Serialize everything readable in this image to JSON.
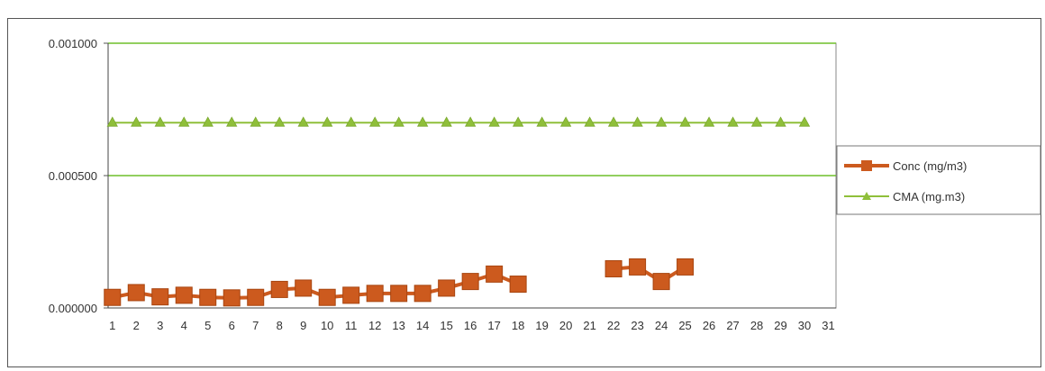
{
  "chart_data": {
    "type": "line",
    "categories": [
      "1",
      "2",
      "3",
      "4",
      "5",
      "6",
      "7",
      "8",
      "9",
      "10",
      "11",
      "12",
      "13",
      "14",
      "15",
      "16",
      "17",
      "18",
      "19",
      "20",
      "21",
      "22",
      "23",
      "24",
      "25",
      "26",
      "27",
      "28",
      "29",
      "30",
      "31"
    ],
    "series": [
      {
        "name": "Conc  (mg/m3)",
        "color": "#cc5a1e",
        "marker": "square",
        "values": [
          4e-05,
          5.8e-05,
          4.2e-05,
          4.8e-05,
          4e-05,
          3.8e-05,
          4e-05,
          7e-05,
          7.5e-05,
          4e-05,
          4.8e-05,
          5.5e-05,
          5.5e-05,
          5.5e-05,
          7.5e-05,
          0.0001,
          0.000128,
          9e-05,
          null,
          null,
          null,
          0.000148,
          0.000155,
          0.0001,
          0.000155,
          null,
          null,
          null,
          null,
          null,
          null
        ]
      },
      {
        "name": "CMA (mg.m3)",
        "color": "#8fbf3a",
        "marker": "triangle",
        "values": [
          0.0007,
          0.0007,
          0.0007,
          0.0007,
          0.0007,
          0.0007,
          0.0007,
          0.0007,
          0.0007,
          0.0007,
          0.0007,
          0.0007,
          0.0007,
          0.0007,
          0.0007,
          0.0007,
          0.0007,
          0.0007,
          0.0007,
          0.0007,
          0.0007,
          0.0007,
          0.0007,
          0.0007,
          0.0007,
          0.0007,
          0.0007,
          0.0007,
          0.0007,
          0.0007,
          null
        ]
      }
    ],
    "y_ticks": [
      {
        "value": 0.0,
        "label": "0.000000"
      },
      {
        "value": 0.0005,
        "label": "0.000500"
      },
      {
        "value": 0.001,
        "label": "0.001000"
      }
    ],
    "ylim": [
      0,
      0.001
    ],
    "gridline_color": "#6fbf2a",
    "legend_position": "right",
    "title": "",
    "xlabel": "",
    "ylabel": ""
  }
}
